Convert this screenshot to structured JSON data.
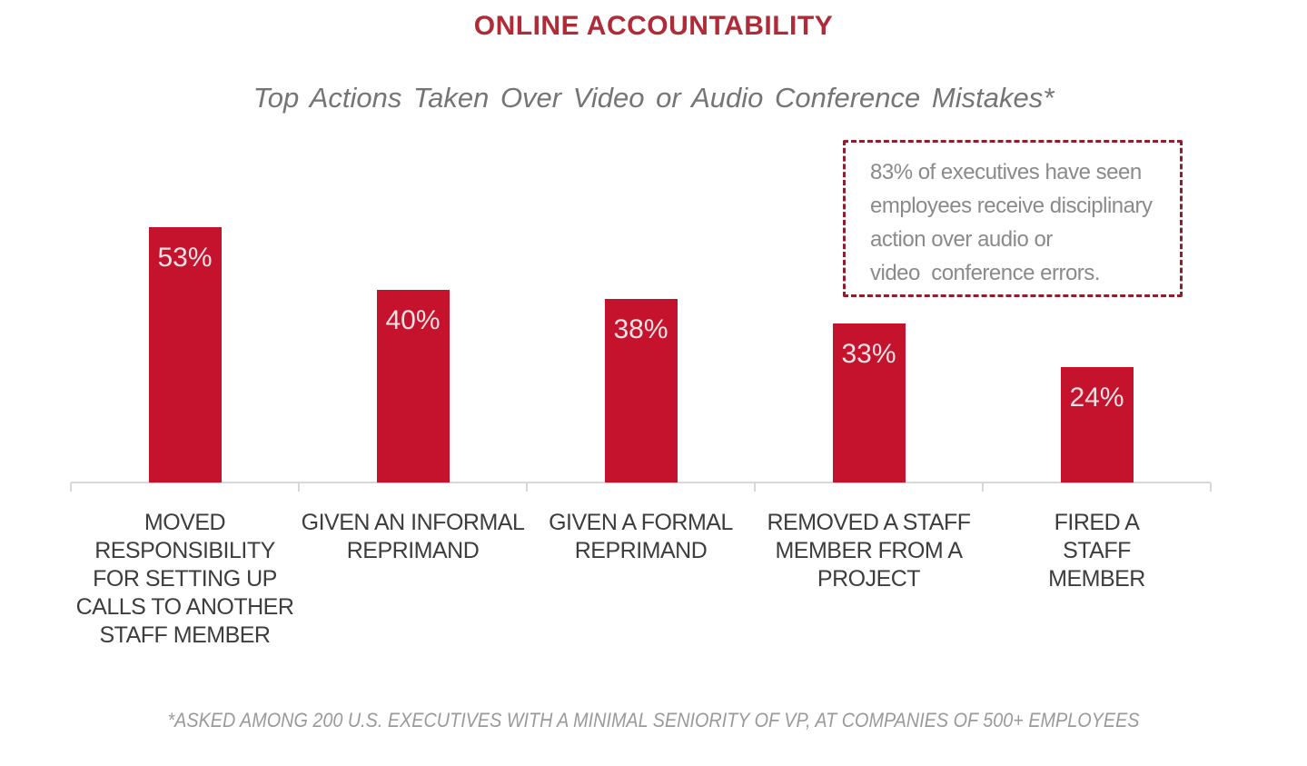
{
  "header": {
    "title": "ONLINE ACCOUNTABILITY",
    "subtitle": "Top Actions Taken Over Video or Audio Conference Mistakes*"
  },
  "callout": {
    "text": "83% of executives have seen\nemployees receive disciplinary\naction over audio or\nvideo  conference errors."
  },
  "footnote": "*ASKED AMONG 200 U.S. EXECUTIVES WITH A MINIMAL SENIORITY OF VP, AT COMPANIES OF 500+ EMPLOYEES",
  "colors": {
    "title_red": "#AF2B37",
    "bar_red": "#C5122D",
    "bar_value_text": "#F3E2E4",
    "callout_border_red": "#8E1F2F",
    "callout_text_gray": "#8A8A8A",
    "subtitle_gray": "#757575",
    "category_label_gray": "#3D3D3D",
    "axis_gray": "#D8D8D8",
    "footnote_gray": "#9A9A9A"
  },
  "chart_data": {
    "type": "bar",
    "title": "ONLINE ACCOUNTABILITY",
    "subtitle": "Top Actions Taken Over Video or Audio Conference Mistakes*",
    "categories": [
      "MOVED RESPONSIBILITY FOR SETTING UP CALLS TO ANOTHER STAFF MEMBER",
      "GIVEN AN INFORMAL REPRIMAND",
      "GIVEN A FORMAL REPRIMAND",
      "REMOVED A STAFF MEMBER FROM A PROJECT",
      "FIRED A STAFF MEMBER"
    ],
    "category_lines": [
      [
        "MOVED",
        "RESPONSIBILITY",
        "FOR SETTING UP",
        "CALLS TO ANOTHER",
        "STAFF MEMBER"
      ],
      [
        "GIVEN AN INFORMAL",
        "REPRIMAND"
      ],
      [
        "GIVEN A FORMAL",
        "REPRIMAND"
      ],
      [
        "REMOVED A STAFF",
        "MEMBER FROM A",
        "PROJECT"
      ],
      [
        "FIRED A STAFF",
        "MEMBER"
      ]
    ],
    "values": [
      53,
      40,
      38,
      33,
      24
    ],
    "value_labels": [
      "53%",
      "40%",
      "38%",
      "33%",
      "24%"
    ],
    "unit": "%",
    "ylim": [
      0,
      100
    ],
    "y_axis_visible": false,
    "grid": false,
    "legend_visible": false,
    "value_label_position": "inside-top",
    "annotation": "83% of executives have seen employees receive disciplinary action over audio or video conference errors."
  }
}
